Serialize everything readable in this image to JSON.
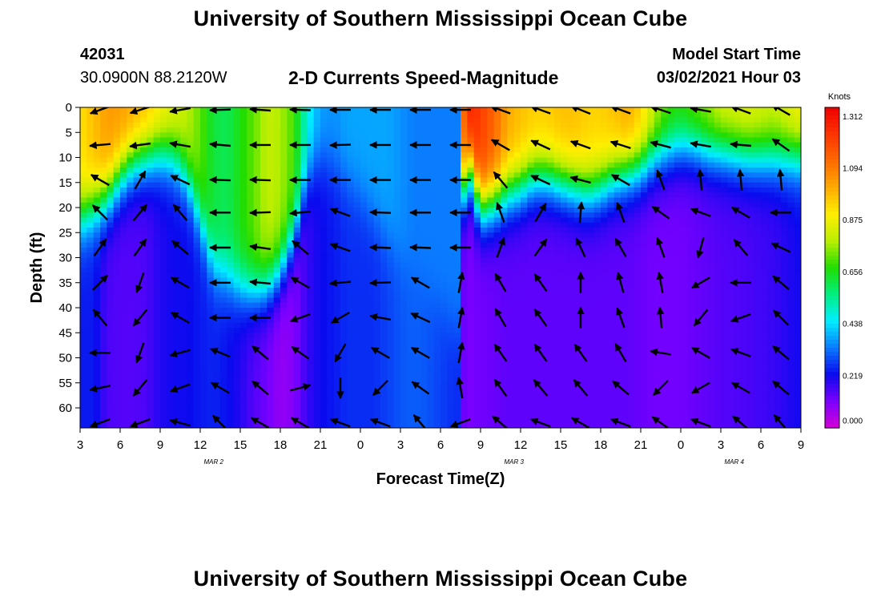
{
  "header": {
    "title": "University of Southern Mississippi Ocean Cube",
    "station_id": "42031",
    "station_coords": "30.0900N 88.2120W",
    "subtitle": "2-D Currents Speed-Magnitude",
    "model_start_label": "Model Start Time",
    "model_start_value": "03/02/2021 Hour 03"
  },
  "footer": {
    "title": "University of Southern Mississippi Ocean Cube"
  },
  "chart_data": {
    "type": "heatmap",
    "xlabel": "Forecast Time(Z)",
    "ylabel": "Depth (ft)",
    "x_ticks": [
      "3",
      "6",
      "9",
      "12",
      "15",
      "18",
      "21",
      "0",
      "3",
      "6",
      "9",
      "12",
      "15",
      "18",
      "21",
      "0",
      "3",
      "6",
      "9"
    ],
    "x_range_hours": [
      0,
      54
    ],
    "date_labels": [
      {
        "label": "MAR 2",
        "hour": 10
      },
      {
        "label": "MAR 3",
        "hour": 32.5
      },
      {
        "label": "MAR 4",
        "hour": 49
      }
    ],
    "y_ticks": [
      0,
      5,
      10,
      15,
      20,
      25,
      30,
      35,
      40,
      45,
      50,
      55,
      60
    ],
    "y_range": [
      0,
      64
    ],
    "y_inverted": true,
    "colorbar": {
      "label": "Knots",
      "ticks": [
        "0.000",
        "0.219",
        "0.438",
        "0.656",
        "0.875",
        "1.094",
        "1.312"
      ],
      "range": [
        0,
        1.35
      ],
      "colors": [
        "#d400d4",
        "#7a00ff",
        "#0a0aee",
        "#0a7aff",
        "#00eeff",
        "#00ee80",
        "#22dd00",
        "#bbee00",
        "#ffee00",
        "#ffaa00",
        "#ff6a00",
        "#ff3300",
        "#ee0000"
      ]
    },
    "speed_profile_note": "speed (knots) by time and depth",
    "speed_columns": [
      {
        "t": 0.0,
        "mld": 22,
        "top": 0.92,
        "bot": 0.24
      },
      {
        "t": 1.0,
        "mld": 20,
        "top": 0.98,
        "bot": 0.24
      },
      {
        "t": 2.0,
        "mld": 18,
        "top": 1.04,
        "bot": 0.16
      },
      {
        "t": 3.0,
        "mld": 14,
        "top": 1.04,
        "bot": 0.15
      },
      {
        "t": 4.0,
        "mld": 11,
        "top": 1.02,
        "bot": 0.15
      },
      {
        "t": 5.0,
        "mld": 10,
        "top": 0.98,
        "bot": 0.16
      },
      {
        "t": 6.0,
        "mld": 9,
        "top": 0.92,
        "bot": 0.2
      },
      {
        "t": 7.0,
        "mld": 10,
        "top": 0.85,
        "bot": 0.22
      },
      {
        "t": 8.0,
        "mld": 14,
        "top": 0.8,
        "bot": 0.22
      },
      {
        "t": 9.0,
        "mld": 22,
        "top": 0.72,
        "bot": 0.24
      },
      {
        "t": 10.0,
        "mld": 32,
        "top": 0.62,
        "bot": 0.25
      },
      {
        "t": 11.0,
        "mld": 34,
        "top": 0.6,
        "bot": 0.23
      },
      {
        "t": 12.0,
        "mld": 36,
        "top": 0.66,
        "bot": 0.2
      },
      {
        "t": 13.0,
        "mld": 37,
        "top": 0.72,
        "bot": 0.15
      },
      {
        "t": 14.0,
        "mld": 36,
        "top": 0.8,
        "bot": 0.12
      },
      {
        "t": 15.0,
        "mld": 33,
        "top": 0.78,
        "bot": 0.08
      },
      {
        "t": 16.0,
        "mld": 26,
        "top": 0.7,
        "bot": 0.1
      },
      {
        "t": 17.0,
        "mld": 14,
        "top": 0.48,
        "bot": 0.18
      },
      {
        "t": 18.0,
        "mld": 10,
        "top": 0.38,
        "bot": 0.22
      },
      {
        "t": 19.0,
        "mld": 12,
        "top": 0.36,
        "bot": 0.24
      },
      {
        "t": 20.0,
        "mld": 15,
        "top": 0.38,
        "bot": 0.26
      },
      {
        "t": 21.0,
        "mld": 18,
        "top": 0.38,
        "bot": 0.26
      },
      {
        "t": 22.0,
        "mld": 22,
        "top": 0.38,
        "bot": 0.26
      },
      {
        "t": 23.0,
        "mld": 26,
        "top": 0.38,
        "bot": 0.28
      },
      {
        "t": 24.0,
        "mld": 30,
        "top": 0.36,
        "bot": 0.3
      },
      {
        "t": 25.0,
        "mld": 33,
        "top": 0.34,
        "bot": 0.31
      },
      {
        "t": 26.0,
        "mld": 37,
        "top": 0.34,
        "bot": 0.3
      },
      {
        "t": 27.0,
        "mld": 40,
        "top": 0.34,
        "bot": 0.28
      },
      {
        "t": 28.0,
        "mld": 44,
        "top": 0.34,
        "bot": 0.26
      },
      {
        "t": 28.5,
        "mld": 44,
        "top": 0.34,
        "bot": 0.26
      },
      {
        "t": 28.8,
        "mld": 10,
        "top": 1.3,
        "bot": 0.1
      },
      {
        "t": 29.5,
        "mld": 15,
        "top": 1.26,
        "bot": 0.12
      },
      {
        "t": 30.0,
        "mld": 20,
        "top": 1.22,
        "bot": 0.12
      },
      {
        "t": 31.0,
        "mld": 19,
        "top": 1.14,
        "bot": 0.13
      },
      {
        "t": 32.0,
        "mld": 17,
        "top": 1.02,
        "bot": 0.14
      },
      {
        "t": 33.0,
        "mld": 16,
        "top": 0.98,
        "bot": 0.14
      },
      {
        "t": 34.0,
        "mld": 14,
        "top": 0.96,
        "bot": 0.14
      },
      {
        "t": 35.0,
        "mld": 14,
        "top": 0.96,
        "bot": 0.14
      },
      {
        "t": 36.0,
        "mld": 15,
        "top": 0.98,
        "bot": 0.14
      },
      {
        "t": 37.0,
        "mld": 16,
        "top": 0.98,
        "bot": 0.14
      },
      {
        "t": 38.0,
        "mld": 17,
        "top": 0.95,
        "bot": 0.14
      },
      {
        "t": 39.0,
        "mld": 16,
        "top": 0.95,
        "bot": 0.14
      },
      {
        "t": 40.0,
        "mld": 14,
        "top": 0.98,
        "bot": 0.14
      },
      {
        "t": 41.0,
        "mld": 13,
        "top": 1.02,
        "bot": 0.14
      },
      {
        "t": 42.0,
        "mld": 12,
        "top": 0.96,
        "bot": 0.13
      },
      {
        "t": 43.0,
        "mld": 10,
        "top": 0.82,
        "bot": 0.12
      },
      {
        "t": 44.0,
        "mld": 9,
        "top": 0.72,
        "bot": 0.12
      },
      {
        "t": 45.0,
        "mld": 8,
        "top": 0.7,
        "bot": 0.12
      },
      {
        "t": 46.0,
        "mld": 8,
        "top": 0.75,
        "bot": 0.13
      },
      {
        "t": 47.0,
        "mld": 9,
        "top": 0.78,
        "bot": 0.14
      },
      {
        "t": 48.0,
        "mld": 9,
        "top": 0.84,
        "bot": 0.15
      },
      {
        "t": 50.0,
        "mld": 10,
        "top": 0.86,
        "bot": 0.16
      },
      {
        "t": 52.0,
        "mld": 10,
        "top": 0.82,
        "bot": 0.18
      },
      {
        "t": 54.0,
        "mld": 10,
        "top": 0.9,
        "bot": 0.22
      }
    ],
    "vector_times": [
      1.5,
      4.5,
      7.5,
      10.5,
      13.5,
      16.5,
      19.5,
      22.5,
      25.5,
      28.5,
      31.5,
      34.5,
      37.5,
      40.5,
      43.5,
      46.5,
      49.5,
      52.5
    ],
    "vector_depths": [
      0.5,
      7.5,
      14.5,
      21,
      28,
      35,
      42,
      49,
      56,
      63
    ],
    "vector_directions_deg": [
      [
        200,
        198,
        190,
        182,
        176,
        178,
        180,
        180,
        180,
        180,
        160,
        160,
        158,
        160,
        162,
        170,
        160,
        150
      ],
      [
        185,
        188,
        170,
        175,
        180,
        180,
        182,
        180,
        180,
        180,
        150,
        155,
        160,
        162,
        165,
        170,
        175,
        145
      ],
      [
        150,
        60,
        155,
        178,
        178,
        180,
        180,
        180,
        180,
        180,
        130,
        155,
        165,
        150,
        110,
        95,
        95,
        95
      ],
      [
        135,
        50,
        130,
        180,
        182,
        185,
        160,
        178,
        180,
        180,
        110,
        60,
        85,
        110,
        145,
        160,
        150,
        180
      ],
      [
        55,
        55,
        140,
        180,
        172,
        140,
        160,
        178,
        178,
        180,
        70,
        55,
        115,
        120,
        110,
        255,
        130,
        155
      ],
      [
        45,
        250,
        150,
        180,
        175,
        150,
        185,
        182,
        150,
        80,
        120,
        125,
        90,
        105,
        100,
        210,
        180,
        140
      ],
      [
        130,
        230,
        150,
        180,
        180,
        200,
        210,
        170,
        155,
        80,
        120,
        125,
        90,
        110,
        95,
        230,
        200,
        135
      ],
      [
        180,
        250,
        195,
        158,
        140,
        145,
        240,
        150,
        150,
        80,
        125,
        125,
        125,
        120,
        170,
        150,
        160,
        140
      ],
      [
        192,
        230,
        200,
        150,
        140,
        15,
        270,
        225,
        145,
        100,
        125,
        130,
        130,
        140,
        225,
        210,
        150,
        140
      ],
      [
        200,
        200,
        165,
        135,
        150,
        150,
        160,
        160,
        130,
        200,
        140,
        160,
        150,
        160,
        145,
        160,
        140,
        130
      ]
    ]
  }
}
